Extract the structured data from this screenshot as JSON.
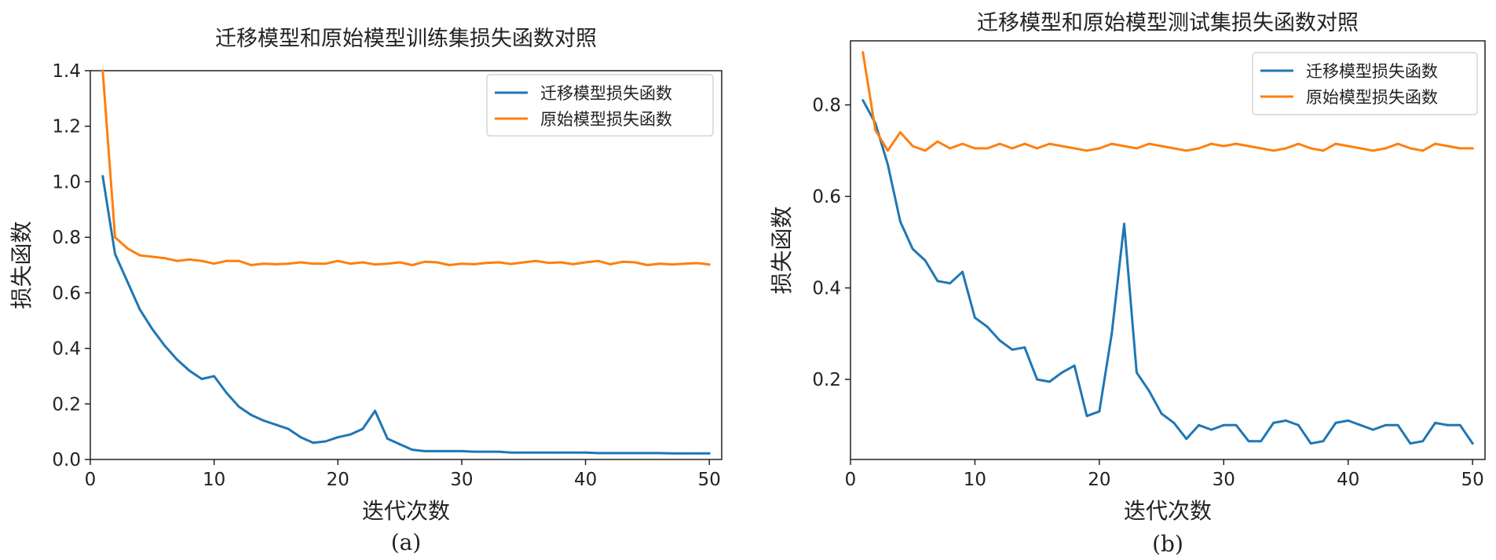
{
  "chart_data": [
    {
      "type": "line",
      "panel": "a",
      "title": "迁移模型和原始模型训练集损失函数对照",
      "xlabel": "迭代次数",
      "ylabel": "损失函数",
      "caption": "(a)",
      "xlim": [
        0,
        51
      ],
      "ylim": [
        0,
        1.4
      ],
      "xticks": [
        0,
        10,
        20,
        30,
        40,
        50
      ],
      "yticks": [
        0.0,
        0.2,
        0.4,
        0.6,
        0.8,
        1.0,
        1.2,
        1.4
      ],
      "ytick_labels": [
        "0.0",
        "0.2",
        "0.4",
        "0.6",
        "0.8",
        "1.0",
        "1.2",
        "1.4"
      ],
      "legend_position": "top-right",
      "x": [
        1,
        2,
        3,
        4,
        5,
        6,
        7,
        8,
        9,
        10,
        11,
        12,
        13,
        14,
        15,
        16,
        17,
        18,
        19,
        20,
        21,
        22,
        23,
        24,
        25,
        26,
        27,
        28,
        29,
        30,
        31,
        32,
        33,
        34,
        35,
        36,
        37,
        38,
        39,
        40,
        41,
        42,
        43,
        44,
        45,
        46,
        47,
        48,
        49,
        50
      ],
      "series": [
        {
          "name": "迁移模型损失函数",
          "color": "#1f77b4",
          "values": [
            1.02,
            0.74,
            0.64,
            0.54,
            0.47,
            0.41,
            0.36,
            0.32,
            0.29,
            0.3,
            0.24,
            0.19,
            0.16,
            0.14,
            0.125,
            0.11,
            0.08,
            0.06,
            0.065,
            0.08,
            0.09,
            0.11,
            0.175,
            0.075,
            0.055,
            0.035,
            0.03,
            0.03,
            0.03,
            0.03,
            0.028,
            0.028,
            0.028,
            0.025,
            0.025,
            0.025,
            0.025,
            0.025,
            0.025,
            0.025,
            0.023,
            0.023,
            0.023,
            0.023,
            0.023,
            0.023,
            0.022,
            0.022,
            0.022,
            0.022
          ]
        },
        {
          "name": "原始模型损失函数",
          "color": "#ff7f0e",
          "values": [
            1.4,
            0.8,
            0.76,
            0.735,
            0.73,
            0.725,
            0.715,
            0.72,
            0.715,
            0.705,
            0.715,
            0.715,
            0.7,
            0.705,
            0.703,
            0.705,
            0.71,
            0.705,
            0.705,
            0.715,
            0.705,
            0.71,
            0.702,
            0.705,
            0.71,
            0.7,
            0.712,
            0.71,
            0.7,
            0.705,
            0.703,
            0.708,
            0.71,
            0.704,
            0.71,
            0.715,
            0.708,
            0.71,
            0.703,
            0.71,
            0.715,
            0.703,
            0.712,
            0.71,
            0.7,
            0.705,
            0.702,
            0.705,
            0.707,
            0.702
          ]
        }
      ]
    },
    {
      "type": "line",
      "panel": "b",
      "title": "迁移模型和原始模型测试集损失函数对照",
      "xlabel": "迭代次数",
      "ylabel": "损失函数",
      "caption": "(b)",
      "xlim": [
        0,
        51
      ],
      "ylim": [
        0.025,
        0.94
      ],
      "xticks": [
        0,
        10,
        20,
        30,
        40,
        50
      ],
      "yticks": [
        0.2,
        0.4,
        0.6,
        0.8
      ],
      "ytick_labels": [
        "0.2",
        "0.4",
        "0.6",
        "0.8"
      ],
      "legend_position": "top-right",
      "x": [
        1,
        2,
        3,
        4,
        5,
        6,
        7,
        8,
        9,
        10,
        11,
        12,
        13,
        14,
        15,
        16,
        17,
        18,
        19,
        20,
        21,
        22,
        23,
        24,
        25,
        26,
        27,
        28,
        29,
        30,
        31,
        32,
        33,
        34,
        35,
        36,
        37,
        38,
        39,
        40,
        41,
        42,
        43,
        44,
        45,
        46,
        47,
        48,
        49,
        50
      ],
      "series": [
        {
          "name": "迁移模型损失函数",
          "color": "#1f77b4",
          "values": [
            0.81,
            0.76,
            0.67,
            0.545,
            0.485,
            0.46,
            0.415,
            0.41,
            0.435,
            0.335,
            0.315,
            0.285,
            0.265,
            0.27,
            0.2,
            0.195,
            0.215,
            0.23,
            0.12,
            0.13,
            0.3,
            0.54,
            0.215,
            0.175,
            0.125,
            0.105,
            0.07,
            0.1,
            0.09,
            0.1,
            0.1,
            0.065,
            0.065,
            0.105,
            0.11,
            0.1,
            0.06,
            0.065,
            0.105,
            0.11,
            0.1,
            0.09,
            0.1,
            0.1,
            0.06,
            0.065,
            0.105,
            0.1,
            0.1,
            0.06
          ]
        },
        {
          "name": "原始模型损失函数",
          "color": "#ff7f0e",
          "values": [
            0.915,
            0.745,
            0.7,
            0.74,
            0.71,
            0.7,
            0.72,
            0.705,
            0.715,
            0.705,
            0.705,
            0.715,
            0.705,
            0.715,
            0.705,
            0.715,
            0.71,
            0.705,
            0.7,
            0.705,
            0.715,
            0.71,
            0.705,
            0.715,
            0.71,
            0.705,
            0.7,
            0.705,
            0.715,
            0.71,
            0.715,
            0.71,
            0.705,
            0.7,
            0.705,
            0.715,
            0.705,
            0.7,
            0.715,
            0.71,
            0.705,
            0.7,
            0.705,
            0.715,
            0.705,
            0.7,
            0.715,
            0.71,
            0.705,
            0.705
          ]
        }
      ]
    }
  ]
}
